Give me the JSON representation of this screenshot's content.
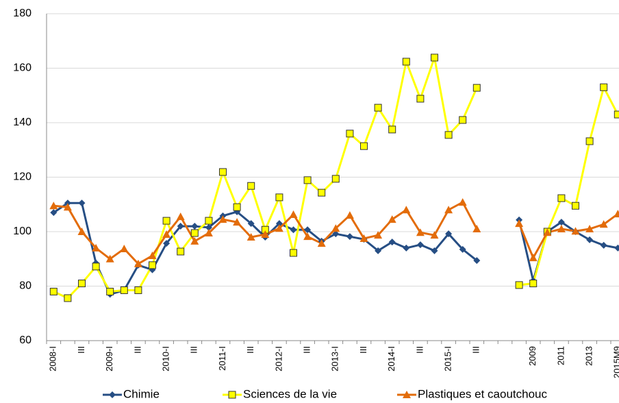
{
  "chart_data": {
    "type": "line",
    "categories": [
      "2008-I",
      null,
      "III",
      null,
      "2009-I",
      null,
      "III",
      null,
      "2010-I",
      null,
      "III",
      null,
      "2011-I",
      null,
      "III",
      null,
      "2012-I",
      null,
      "III",
      null,
      "2013-I",
      null,
      "III",
      null,
      "2014-I",
      null,
      "III",
      null,
      "2015-I",
      null,
      "III",
      null,
      null,
      null,
      "2009",
      null,
      "2011",
      null,
      "2013",
      null,
      "2015M9"
    ],
    "series": [
      {
        "name": "Chimie",
        "color": "#264e84",
        "marker": "diamond",
        "values": [
          107,
          110.5,
          110.5,
          88.5,
          77,
          78.5,
          87.7,
          86,
          95.7,
          102,
          102,
          101.5,
          105.8,
          107.3,
          103,
          98,
          103,
          100.7,
          100.7,
          96.5,
          99.2,
          98.2,
          97.2,
          93,
          96.2,
          94,
          95.2,
          93,
          99.2,
          93.5,
          89.4,
          null,
          null,
          104.3,
          82,
          100,
          103.5,
          100,
          97,
          95,
          94
        ]
      },
      {
        "name": "Sciences de la vie",
        "color": "#ffff00",
        "marker": "square",
        "values": [
          78,
          75.6,
          81,
          87.2,
          78,
          78.5,
          78.5,
          87.7,
          104,
          92.7,
          99.5,
          104,
          121.9,
          109,
          116.8,
          100.7,
          112.6,
          92.2,
          118.9,
          114.3,
          119.4,
          136,
          131.4,
          145.5,
          137.5,
          162.4,
          148.8,
          163.9,
          135.5,
          141,
          152.8,
          null,
          null,
          80.4,
          81,
          100,
          112.3,
          109.5,
          133.2,
          153,
          143
        ]
      },
      {
        "name": "Plastiques et caoutchouc",
        "color": "#e36c0a",
        "marker": "triangle",
        "values": [
          109.5,
          109,
          100,
          94,
          90,
          93.7,
          88.2,
          91.2,
          99,
          105.5,
          96.5,
          99.5,
          104.5,
          103.5,
          98,
          99,
          101.2,
          106.3,
          98.2,
          95.7,
          101.2,
          106,
          97.5,
          98.7,
          104.5,
          108,
          99.7,
          98.7,
          108,
          110.8,
          101,
          null,
          null,
          103,
          90.4,
          99.7,
          101,
          100.2,
          101,
          102.7,
          106.5
        ]
      }
    ],
    "ylim": [
      60,
      180
    ],
    "yticks": [
      60,
      80,
      100,
      120,
      140,
      160,
      180
    ],
    "grid": true,
    "legend": "bottom"
  }
}
